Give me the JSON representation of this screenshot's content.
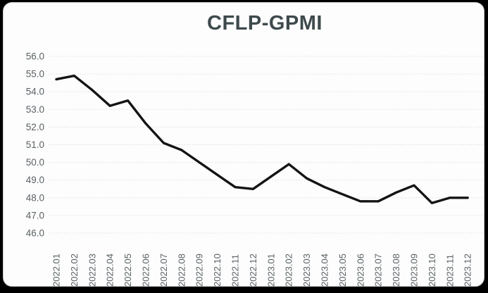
{
  "window": {
    "background_color": "#000000",
    "card_color": "#fdfdfd"
  },
  "chart_data": {
    "type": "line",
    "title": "CFLP-GPMI",
    "title_color": "#3e4a4c",
    "xlabel": "",
    "ylabel": "",
    "categories": [
      "2022.01",
      "2022.02",
      "2022.03",
      "2022.04",
      "2022.05",
      "2022.06",
      "2022.07",
      "2022.08",
      "2022.09",
      "2022.10",
      "2022.11",
      "2022.12",
      "2023.01",
      "2023.02",
      "2023.03",
      "2023.04",
      "2023.05",
      "2023.06",
      "2023.07",
      "2023.08",
      "2023.09",
      "2023.10",
      "2023.11",
      "2023.12"
    ],
    "series": [
      {
        "name": "CFLP-GPMI",
        "color": "#141414",
        "values": [
          54.7,
          54.9,
          54.1,
          53.2,
          53.5,
          52.2,
          51.1,
          50.7,
          50.0,
          49.3,
          48.6,
          48.5,
          49.2,
          49.9,
          49.1,
          48.6,
          48.2,
          47.8,
          47.8,
          48.3,
          48.7,
          47.7,
          48.0,
          48.0
        ]
      }
    ],
    "ylim": [
      46.0,
      56.0
    ],
    "ytick_step": 1.0,
    "ytick_labels": [
      "56.0",
      "55.0",
      "54.0",
      "53.0",
      "52.0",
      "51.0",
      "50.0",
      "49.0",
      "48.0",
      "47.0",
      "46.0"
    ],
    "xtick_rotation_degrees": 90,
    "grid": "horizontal-dotted",
    "gridline_color": "#d7dfe0",
    "axis_label_color": "#5a6164",
    "legend_position": "none",
    "markers": "none"
  }
}
